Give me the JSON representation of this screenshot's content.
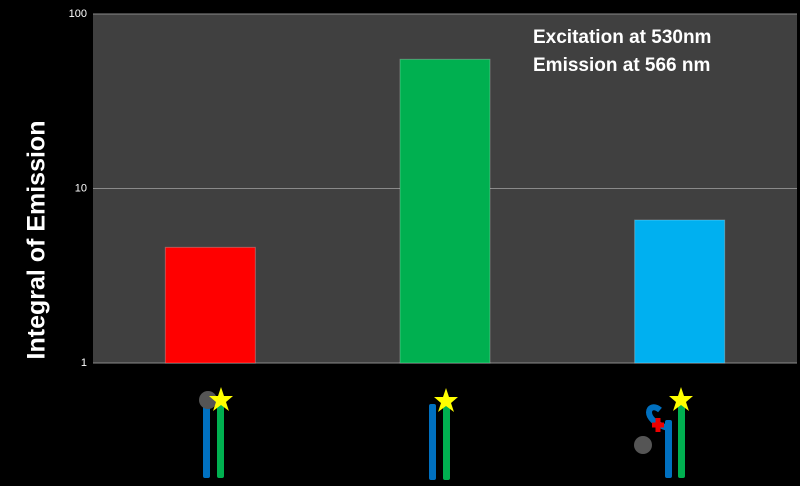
{
  "chart_data": {
    "type": "bar",
    "ylabel": "Integral of Emission",
    "annotations": [
      "Excitation at 530nm",
      "Emission at 566 nm"
    ],
    "categories": [
      null,
      null,
      null
    ],
    "values": [
      4.6,
      55,
      6.6
    ],
    "colors": [
      "#ff0000",
      "#00b050",
      "#00b0f0"
    ],
    "ylim": [
      1,
      100
    ],
    "yticks": [
      1,
      10,
      100
    ],
    "log_y": true,
    "grid": true
  }
}
